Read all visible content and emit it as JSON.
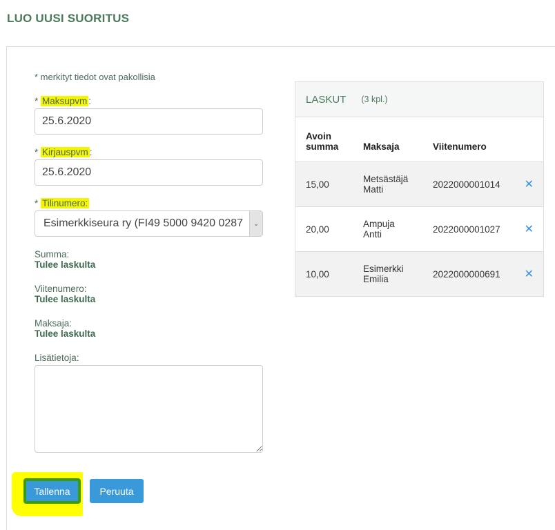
{
  "page_title": "LUO UUSI SUORITUS",
  "form": {
    "required_note": "* merkityt tiedot ovat pakollisia",
    "maksupvm": {
      "star": "* ",
      "label": "Maksupvm",
      "colon": ":",
      "value": "25.6.2020"
    },
    "kirjauspvm": {
      "star": "* ",
      "label": "Kirjauspvm",
      "colon": ":",
      "value": "25.6.2020"
    },
    "tilinumero": {
      "star": "* ",
      "label": "Tilinumero",
      "colon": ":",
      "value": "Esimerkkiseura ry (FI49 5000 9420 0287"
    },
    "summa": {
      "label": "Summa:",
      "value": "Tulee laskulta"
    },
    "viitenumero": {
      "label": "Viitenumero:",
      "value": "Tulee laskulta"
    },
    "maksaja": {
      "label": "Maksaja:",
      "value": "Tulee laskulta"
    },
    "lisatietoja": {
      "label": "Lisätietoja:",
      "value": ""
    },
    "save_label": "Tallenna",
    "cancel_label": "Peruuta"
  },
  "invoices": {
    "title": "LASKUT",
    "count": "(3  kpl.)",
    "columns": [
      "Avoin summa",
      "Maksaja",
      "Viitenumero"
    ],
    "rows": [
      {
        "amount": "15,00",
        "payer_first": "Metsästäjä",
        "payer_last": "Matti",
        "reference": "2022000001014"
      },
      {
        "amount": "20,00",
        "payer_first": "Ampuja",
        "payer_last": "Antti",
        "reference": "2022000001027"
      },
      {
        "amount": "10,00",
        "payer_first": "Esimerkki",
        "payer_last": "Emilia",
        "reference": "2022000000691"
      }
    ],
    "remove_icon": "close-icon"
  },
  "colors": {
    "accent": "#3a9ad9",
    "title": "#4b7a5c",
    "remove": "#3a8fe8"
  }
}
